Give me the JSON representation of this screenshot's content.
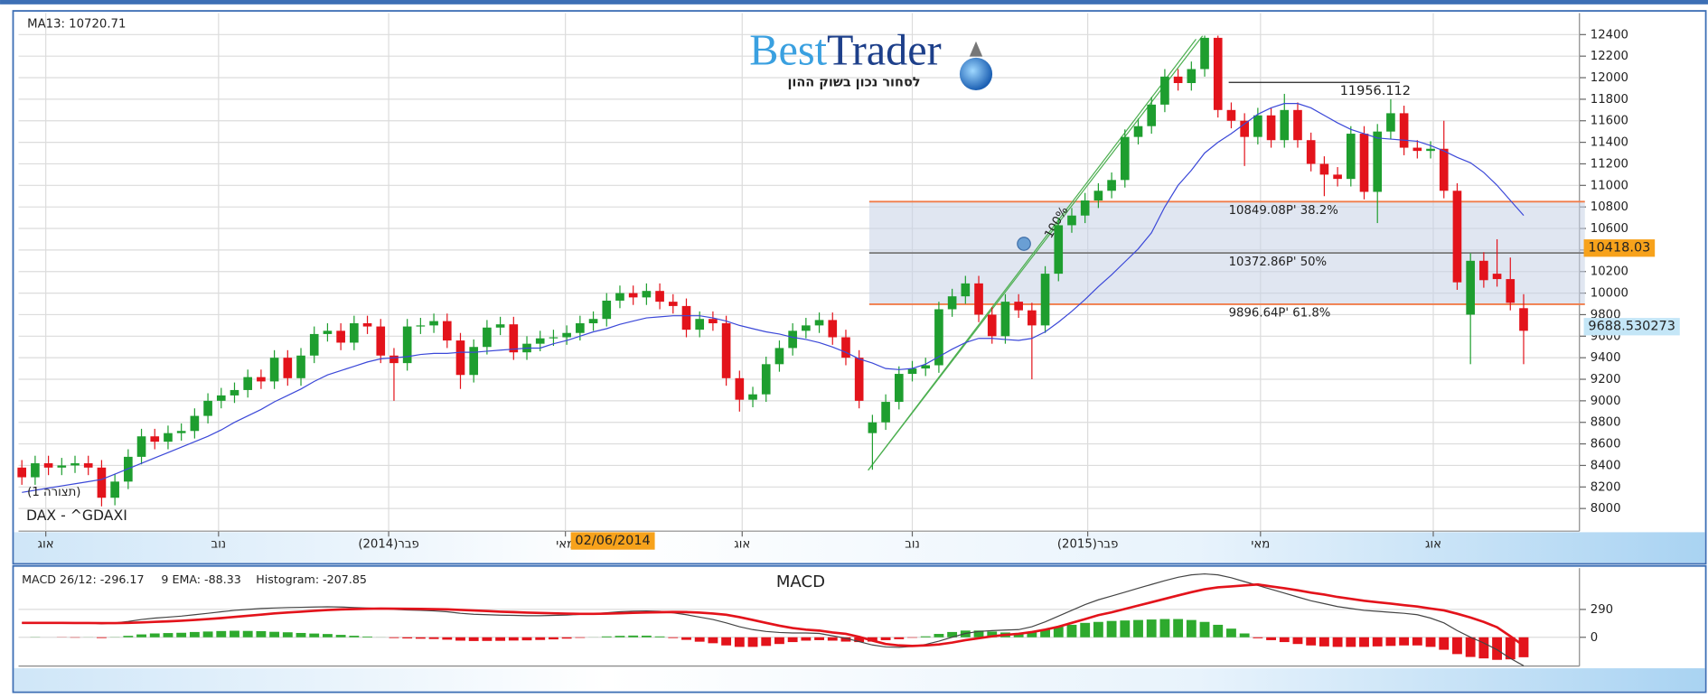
{
  "logo": {
    "brand_1": "Best",
    "brand_2": "Trader",
    "tagline": "לסחור נכון בשוק ההון"
  },
  "chart_data": [
    {
      "type": "candlestick",
      "instrument": "DAX - ^GDAXI",
      "pattern_label": "(תצורה 1)",
      "trend_label": "100%",
      "up_color": "#1e9e2f",
      "down_color": "#e3131b",
      "grid": true,
      "xlim": [
        -0.25,
        117.2
      ],
      "ylim": [
        7790,
        12600
      ],
      "yticks": [
        8000,
        8200,
        8400,
        8600,
        8800,
        9000,
        9200,
        9400,
        9600,
        9800,
        10000,
        10200,
        10400,
        10600,
        10800,
        11000,
        11200,
        11400,
        11600,
        11800,
        12000,
        12200,
        12400
      ],
      "xticks": [
        {
          "value": 1.8,
          "label": "אוג"
        },
        {
          "value": 14.8,
          "label": "נוב"
        },
        {
          "value": 27.6,
          "label": "פבר(2014)"
        },
        {
          "value": 40.9,
          "label": "מאי"
        },
        {
          "value": 54.2,
          "label": "אוג"
        },
        {
          "value": 67.0,
          "label": "נוב"
        },
        {
          "value": 80.2,
          "label": "פבר(2015)"
        },
        {
          "value": 93.2,
          "label": "מאי"
        },
        {
          "value": 106.2,
          "label": "אוג"
        }
      ],
      "open": [
        8380,
        8290,
        8420,
        8380,
        8400,
        8420,
        8380,
        8100,
        8250,
        8480,
        8670,
        8620,
        8700,
        8720,
        8860,
        9000,
        9050,
        9100,
        9220,
        9180,
        9400,
        9210,
        9420,
        9620,
        9650,
        9540,
        9720,
        9690,
        9420,
        9350,
        9690,
        9700,
        9740,
        9560,
        9240,
        9500,
        9680,
        9710,
        9450,
        9530,
        9580,
        9590,
        9630,
        9720,
        9760,
        9930,
        10000,
        9960,
        10020,
        9920,
        9880,
        9660,
        9760,
        9720,
        9210,
        9010,
        9060,
        9340,
        9490,
        9650,
        9700,
        9750,
        9590,
        9400,
        8700,
        8800,
        8990,
        9250,
        9300,
        9330,
        9850,
        9970,
        10090,
        9800,
        9600,
        9920,
        9840,
        9700,
        10180,
        10630,
        10720,
        10860,
        10950,
        11050,
        11450,
        11550,
        11750,
        12010,
        11950,
        12080,
        12370,
        11700,
        11600,
        11450,
        11650,
        11420,
        11700,
        11420,
        11200,
        11100,
        11060,
        11480,
        10940,
        11500,
        11670,
        11350,
        11320,
        11340,
        10950,
        9800,
        10300,
        10180,
        10130,
        9860
      ],
      "high": [
        8450,
        8490,
        8490,
        8470,
        8490,
        8490,
        8450,
        8320,
        8550,
        8740,
        8740,
        8770,
        8790,
        8930,
        9070,
        9120,
        9170,
        9290,
        9290,
        9470,
        9470,
        9490,
        9690,
        9720,
        9720,
        9790,
        9790,
        9760,
        9490,
        9760,
        9770,
        9810,
        9810,
        9630,
        9570,
        9750,
        9780,
        9780,
        9600,
        9650,
        9660,
        9700,
        9790,
        9830,
        10000,
        10070,
        10070,
        10090,
        10090,
        9990,
        9950,
        9830,
        9830,
        9790,
        9280,
        9130,
        9410,
        9560,
        9720,
        9770,
        9820,
        9820,
        9660,
        9470,
        8870,
        9060,
        9320,
        9370,
        9400,
        9920,
        10040,
        10160,
        10160,
        9870,
        9990,
        9990,
        9910,
        10250,
        10700,
        10790,
        10930,
        11020,
        11120,
        11520,
        11620,
        11820,
        12080,
        12080,
        12150,
        12390,
        12390,
        11770,
        11670,
        11720,
        11720,
        11850,
        11770,
        11490,
        11270,
        11170,
        11550,
        11550,
        11570,
        11800,
        11740,
        11420,
        11410,
        11600,
        11020,
        10370,
        10380,
        10500,
        10330,
        9990
      ],
      "low": [
        8220,
        8220,
        8310,
        8310,
        8330,
        8310,
        8020,
        8030,
        8180,
        8410,
        8550,
        8550,
        8630,
        8650,
        8790,
        8930,
        8980,
        9030,
        9110,
        9110,
        9140,
        9140,
        9350,
        9550,
        9470,
        9470,
        9620,
        9350,
        9000,
        9280,
        9620,
        9630,
        9490,
        9110,
        9170,
        9430,
        9610,
        9380,
        9380,
        9460,
        9510,
        9520,
        9560,
        9650,
        9690,
        9860,
        9890,
        9890,
        9850,
        9810,
        9590,
        9590,
        9650,
        9140,
        8900,
        8940,
        8990,
        9270,
        9420,
        9580,
        9630,
        9520,
        9330,
        8930,
        8360,
        8730,
        8920,
        9180,
        9230,
        9260,
        9780,
        9900,
        9730,
        9530,
        9530,
        9770,
        9200,
        9630,
        10110,
        10560,
        10650,
        10790,
        10880,
        10980,
        11380,
        11480,
        11680,
        11880,
        11880,
        12010,
        11630,
        11530,
        11180,
        11380,
        11350,
        11350,
        11350,
        11130,
        10900,
        10990,
        10990,
        10870,
        10650,
        11430,
        11280,
        11250,
        11250,
        10880,
        10030,
        9340,
        10050,
        10060,
        9840,
        9340
      ],
      "close": [
        8290,
        8420,
        8380,
        8400,
        8420,
        8380,
        8100,
        8250,
        8480,
        8670,
        8620,
        8700,
        8720,
        8860,
        9000,
        9050,
        9100,
        9220,
        9180,
        9400,
        9210,
        9420,
        9620,
        9650,
        9540,
        9720,
        9690,
        9420,
        9350,
        9690,
        9700,
        9740,
        9560,
        9240,
        9500,
        9680,
        9710,
        9450,
        9530,
        9580,
        9590,
        9630,
        9720,
        9760,
        9930,
        10000,
        9960,
        10020,
        9920,
        9880,
        9660,
        9760,
        9720,
        9210,
        9010,
        9060,
        9340,
        9490,
        9650,
        9700,
        9750,
        9590,
        9400,
        9000,
        8800,
        8990,
        9250,
        9300,
        9330,
        9850,
        9970,
        10090,
        9800,
        9600,
        9920,
        9840,
        9700,
        10180,
        10630,
        10720,
        10860,
        10950,
        11050,
        11450,
        11550,
        11750,
        12010,
        11950,
        12080,
        12370,
        11700,
        11600,
        11450,
        11650,
        11420,
        11700,
        11420,
        11200,
        11100,
        11060,
        11480,
        10940,
        11500,
        11670,
        11350,
        11320,
        11340,
        10950,
        10100,
        10300,
        10120,
        10130,
        9910,
        9650
      ],
      "series": [
        {
          "name": "MA13: 10720.71",
          "color": "#3b48d8",
          "values": [
            8150,
            8170,
            8190,
            8210,
            8230,
            8250,
            8270,
            8320,
            8370,
            8420,
            8470,
            8520,
            8570,
            8620,
            8670,
            8730,
            8800,
            8860,
            8920,
            8990,
            9050,
            9110,
            9180,
            9240,
            9280,
            9320,
            9360,
            9390,
            9400,
            9410,
            9430,
            9440,
            9440,
            9450,
            9450,
            9460,
            9470,
            9480,
            9490,
            9490,
            9530,
            9560,
            9600,
            9640,
            9670,
            9710,
            9740,
            9770,
            9780,
            9790,
            9790,
            9790,
            9770,
            9740,
            9700,
            9670,
            9640,
            9620,
            9590,
            9570,
            9540,
            9500,
            9450,
            9390,
            9350,
            9300,
            9290,
            9300,
            9340,
            9410,
            9480,
            9540,
            9580,
            9580,
            9570,
            9560,
            9580,
            9640,
            9730,
            9830,
            9940,
            10060,
            10170,
            10290,
            10410,
            10560,
            10800,
            11000,
            11140,
            11300,
            11400,
            11480,
            11570,
            11660,
            11720,
            11760,
            11760,
            11720,
            11650,
            11580,
            11520,
            11480,
            11440,
            11430,
            11420,
            11410,
            11370,
            11320,
            11260,
            11210,
            11120,
            11000,
            10860,
            10720.71
          ]
        }
      ],
      "levels": [
        {
          "value": 10849.08,
          "label": "10849.08P' 38.2%",
          "color": "#f07c4a"
        },
        {
          "value": 10372.86,
          "label": "10372.86P' 50%",
          "color": "#777777"
        },
        {
          "value": 9896.64,
          "label": "9896.64P' 61.8%",
          "color": "#f07c4a"
        }
      ],
      "annotation": {
        "value": 11956.112
      },
      "price_tags": [
        {
          "value": 10418.03,
          "color": "#f7a21b"
        },
        {
          "value": 9688.530273,
          "color": "#c4e6f7"
        }
      ],
      "date_tag": "02/06/2014"
    },
    {
      "type": "macd",
      "title": "MACD",
      "up_color": "#2eaa2e",
      "down_color": "#e3131b",
      "grid": true,
      "xlim": [
        -0.25,
        117.2
      ],
      "ylim": [
        -300,
        720
      ],
      "yticks": [
        0,
        290
      ],
      "series": [
        {
          "name": "MACD 26/12: -296.17",
          "color": "#444444",
          "values": [
            150,
            152,
            150,
            148,
            145,
            150,
            140,
            150,
            165,
            185,
            200,
            210,
            220,
            235,
            250,
            265,
            280,
            290,
            300,
            305,
            310,
            312,
            315,
            318,
            315,
            310,
            305,
            300,
            290,
            285,
            280,
            275,
            265,
            250,
            240,
            235,
            230,
            228,
            225,
            225,
            228,
            232,
            238,
            245,
            255,
            265,
            272,
            275,
            270,
            255,
            235,
            210,
            185,
            150,
            110,
            80,
            60,
            50,
            45,
            45,
            40,
            15,
            -10,
            -45,
            -80,
            -100,
            -105,
            -95,
            -75,
            -40,
            0,
            40,
            60,
            70,
            75,
            80,
            110,
            160,
            220,
            280,
            340,
            390,
            430,
            470,
            510,
            550,
            590,
            625,
            650,
            660,
            650,
            620,
            580,
            540,
            500,
            460,
            420,
            380,
            350,
            320,
            300,
            280,
            270,
            260,
            250,
            235,
            200,
            150,
            70,
            0,
            -60,
            -130,
            -220,
            -296.17
          ]
        },
        {
          "name": "9 EMA: -88.33",
          "color": "#e3131b",
          "values": [
            150,
            150,
            150,
            150,
            149,
            149,
            148,
            148,
            150,
            155,
            160,
            166,
            173,
            180,
            190,
            200,
            212,
            224,
            236,
            248,
            258,
            267,
            276,
            284,
            290,
            294,
            297,
            299,
            298,
            297,
            295,
            293,
            290,
            285,
            279,
            273,
            267,
            262,
            257,
            253,
            250,
            246,
            244,
            244,
            246,
            250,
            254,
            258,
            261,
            263,
            262,
            256,
            247,
            235,
            210,
            180,
            150,
            120,
            95,
            80,
            70,
            50,
            35,
            5,
            -35,
            -70,
            -85,
            -90,
            -85,
            -75,
            -55,
            -30,
            -10,
            10,
            25,
            35,
            55,
            80,
            110,
            150,
            190,
            230,
            260,
            295,
            330,
            365,
            400,
            435,
            470,
            500,
            520,
            530,
            540,
            550,
            530,
            510,
            490,
            465,
            445,
            420,
            400,
            380,
            365,
            350,
            335,
            320,
            300,
            280,
            245,
            205,
            160,
            105,
            10,
            -88.33
          ]
        },
        {
          "name": "Histogram: -207.85",
          "color": "#e3131b",
          "values": [
            0,
            2,
            0,
            -2,
            -4,
            1,
            -8,
            2,
            15,
            30,
            40,
            44,
            47,
            55,
            60,
            65,
            68,
            66,
            64,
            57,
            52,
            45,
            39,
            34,
            25,
            16,
            8,
            1,
            -8,
            -12,
            -15,
            -18,
            -25,
            -35,
            -39,
            -38,
            -37,
            -34,
            -32,
            -28,
            -22,
            -14,
            -6,
            1,
            9,
            15,
            18,
            17,
            9,
            -8,
            -27,
            -46,
            -62,
            -85,
            -100,
            -100,
            -90,
            -70,
            -50,
            -35,
            -30,
            -35,
            -45,
            -50,
            -45,
            -30,
            -20,
            -5,
            10,
            35,
            55,
            70,
            70,
            60,
            50,
            45,
            55,
            80,
            110,
            130,
            150,
            160,
            170,
            175,
            180,
            185,
            190,
            190,
            180,
            160,
            130,
            90,
            40,
            -10,
            -30,
            -50,
            -70,
            -85,
            -95,
            -100,
            -100,
            -100,
            -95,
            -90,
            -85,
            -85,
            -100,
            -130,
            -175,
            -205,
            -220,
            -235,
            -230,
            -207.85
          ]
        }
      ]
    }
  ]
}
